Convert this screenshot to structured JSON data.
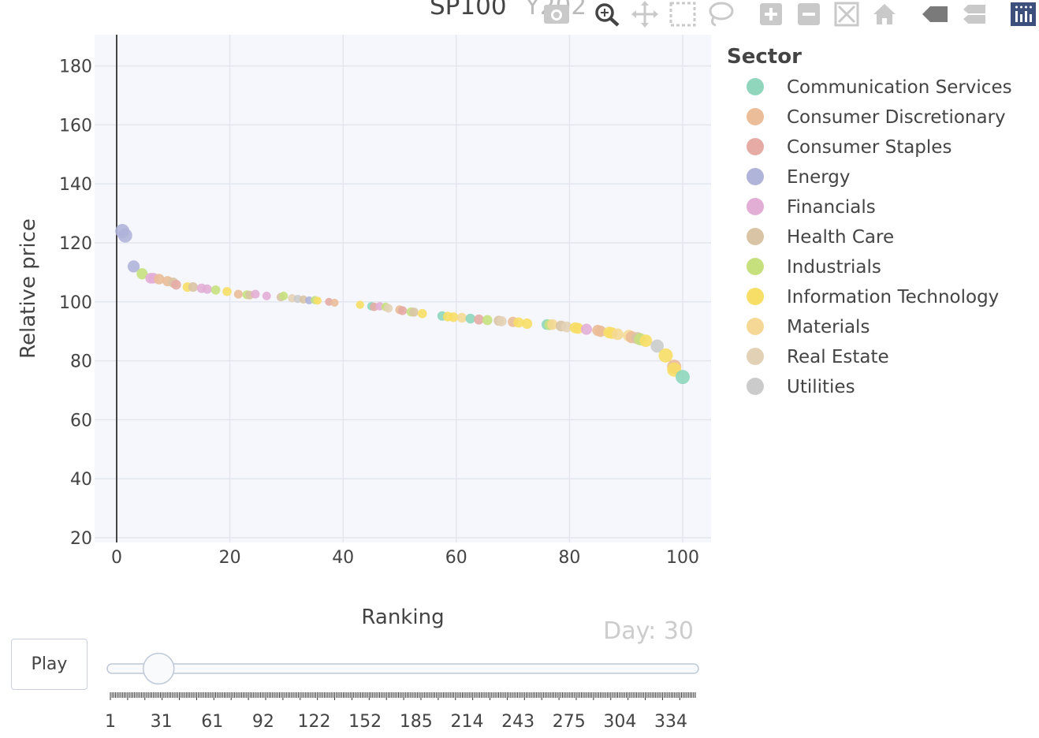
{
  "title": {
    "main": "SP100",
    "faded": "Y202"
  },
  "day_label": "Day: 30",
  "play_label": "Play",
  "legend": {
    "title": "Sector",
    "items": [
      {
        "label": "Communication Services",
        "color": "#8fd6bd"
      },
      {
        "label": "Consumer Discretionary",
        "color": "#ebbd98"
      },
      {
        "label": "Consumer Staples",
        "color": "#e6aba5"
      },
      {
        "label": "Energy",
        "color": "#b0b4d9"
      },
      {
        "label": "Financials",
        "color": "#e2aed6"
      },
      {
        "label": "Health Care",
        "color": "#d9c4a5"
      },
      {
        "label": "Industrials",
        "color": "#c7e07e"
      },
      {
        "label": "Information Technology",
        "color": "#f7de66"
      },
      {
        "label": "Materials",
        "color": "#f5d895"
      },
      {
        "label": "Real Estate",
        "color": "#e3d1b6"
      },
      {
        "label": "Utilities",
        "color": "#cbcbcb"
      }
    ]
  },
  "slider": {
    "ticks": [
      "1",
      "31",
      "61",
      "92",
      "122",
      "152",
      "185",
      "214",
      "243",
      "275",
      "304",
      "334"
    ],
    "current_fraction": 0.087
  },
  "modebar_icons": [
    "camera-icon",
    "zoom-icon",
    "pan-icon",
    "box-select-icon",
    "lasso-icon",
    "zoom-in-icon",
    "zoom-out-icon",
    "autoscale-icon",
    "reset-axes-icon",
    "spike-lines-icon",
    "compare-hover-icon",
    "plotly-logo-icon"
  ],
  "chart_data": {
    "type": "scatter",
    "title": "SP100 Y202",
    "xlabel": "Ranking",
    "ylabel": "Relative price",
    "xlim": [
      -4,
      105
    ],
    "ylim": [
      18,
      190
    ],
    "xticks": [
      0,
      20,
      40,
      60,
      80,
      100
    ],
    "yticks": [
      20,
      40,
      60,
      80,
      100,
      120,
      140,
      160,
      180
    ],
    "grid": true,
    "legend_position": "right",
    "points": [
      {
        "x": 1,
        "y": 124,
        "s": "Energy"
      },
      {
        "x": 1.5,
        "y": 122.5,
        "s": "Energy"
      },
      {
        "x": 3,
        "y": 112,
        "s": "Energy"
      },
      {
        "x": 4.5,
        "y": 109.5,
        "s": "Industrials"
      },
      {
        "x": 6,
        "y": 108,
        "s": "Financials"
      },
      {
        "x": 6.5,
        "y": 108,
        "s": "Financials"
      },
      {
        "x": 7.5,
        "y": 107.7,
        "s": "Consumer Discretionary"
      },
      {
        "x": 9,
        "y": 107,
        "s": "Consumer Discretionary"
      },
      {
        "x": 10,
        "y": 106.5,
        "s": "Health Care"
      },
      {
        "x": 10.5,
        "y": 105.8,
        "s": "Consumer Staples"
      },
      {
        "x": 12.5,
        "y": 105,
        "s": "Information Technology"
      },
      {
        "x": 13.5,
        "y": 105,
        "s": "Health Care"
      },
      {
        "x": 15,
        "y": 104.6,
        "s": "Financials"
      },
      {
        "x": 16,
        "y": 104.3,
        "s": "Financials"
      },
      {
        "x": 17.5,
        "y": 104,
        "s": "Industrials"
      },
      {
        "x": 19.5,
        "y": 103.5,
        "s": "Information Technology"
      },
      {
        "x": 21.5,
        "y": 102.6,
        "s": "Consumer Discretionary"
      },
      {
        "x": 23,
        "y": 102.4,
        "s": "Industrials"
      },
      {
        "x": 23.5,
        "y": 102.3,
        "s": "Health Care"
      },
      {
        "x": 24.5,
        "y": 102.6,
        "s": "Financials"
      },
      {
        "x": 26.5,
        "y": 102,
        "s": "Financials"
      },
      {
        "x": 29,
        "y": 101.6,
        "s": "Health Care"
      },
      {
        "x": 29.5,
        "y": 102,
        "s": "Industrials"
      },
      {
        "x": 31,
        "y": 101.2,
        "s": "Real Estate"
      },
      {
        "x": 32,
        "y": 101,
        "s": "Utilities"
      },
      {
        "x": 33,
        "y": 100.8,
        "s": "Health Care"
      },
      {
        "x": 34,
        "y": 100.5,
        "s": "Energy"
      },
      {
        "x": 35,
        "y": 100.6,
        "s": "Industrials"
      },
      {
        "x": 35.5,
        "y": 100.4,
        "s": "Information Technology"
      },
      {
        "x": 37.5,
        "y": 100,
        "s": "Consumer Staples"
      },
      {
        "x": 38.5,
        "y": 99.7,
        "s": "Consumer Discretionary"
      },
      {
        "x": 43,
        "y": 99,
        "s": "Information Technology"
      },
      {
        "x": 45,
        "y": 98.5,
        "s": "Communication Services"
      },
      {
        "x": 45.5,
        "y": 98.3,
        "s": "Consumer Staples"
      },
      {
        "x": 46.5,
        "y": 98.5,
        "s": "Financials"
      },
      {
        "x": 47.5,
        "y": 98.3,
        "s": "Industrials"
      },
      {
        "x": 48,
        "y": 97.8,
        "s": "Real Estate"
      },
      {
        "x": 50,
        "y": 97.3,
        "s": "Consumer Discretionary"
      },
      {
        "x": 50.5,
        "y": 97,
        "s": "Consumer Staples"
      },
      {
        "x": 52,
        "y": 96.6,
        "s": "Industrials"
      },
      {
        "x": 52.5,
        "y": 96.5,
        "s": "Health Care"
      },
      {
        "x": 54,
        "y": 96,
        "s": "Information Technology"
      },
      {
        "x": 57.5,
        "y": 95.2,
        "s": "Communication Services"
      },
      {
        "x": 58.5,
        "y": 95,
        "s": "Information Technology"
      },
      {
        "x": 59.5,
        "y": 94.8,
        "s": "Information Technology"
      },
      {
        "x": 61,
        "y": 94.6,
        "s": "Materials"
      },
      {
        "x": 62.5,
        "y": 94.3,
        "s": "Communication Services"
      },
      {
        "x": 64,
        "y": 94,
        "s": "Consumer Staples"
      },
      {
        "x": 65.5,
        "y": 93.8,
        "s": "Industrials"
      },
      {
        "x": 67.5,
        "y": 93.6,
        "s": "Health Care"
      },
      {
        "x": 68,
        "y": 93.4,
        "s": "Real Estate"
      },
      {
        "x": 70,
        "y": 93.2,
        "s": "Consumer Discretionary"
      },
      {
        "x": 71,
        "y": 93,
        "s": "Information Technology"
      },
      {
        "x": 72.5,
        "y": 92.6,
        "s": "Information Technology"
      },
      {
        "x": 76,
        "y": 92.3,
        "s": "Communication Services"
      },
      {
        "x": 76.5,
        "y": 92.2,
        "s": "Industrials"
      },
      {
        "x": 77,
        "y": 92.3,
        "s": "Materials"
      },
      {
        "x": 78.5,
        "y": 91.8,
        "s": "Health Care"
      },
      {
        "x": 79.5,
        "y": 91.5,
        "s": "Real Estate"
      },
      {
        "x": 81,
        "y": 91.2,
        "s": "Information Technology"
      },
      {
        "x": 81.5,
        "y": 91,
        "s": "Information Technology"
      },
      {
        "x": 83,
        "y": 90.7,
        "s": "Financials"
      },
      {
        "x": 85,
        "y": 90.3,
        "s": "Consumer Discretionary"
      },
      {
        "x": 85.5,
        "y": 90,
        "s": "Consumer Discretionary"
      },
      {
        "x": 87,
        "y": 89.6,
        "s": "Information Technology"
      },
      {
        "x": 87.5,
        "y": 89.4,
        "s": "Information Technology"
      },
      {
        "x": 88.5,
        "y": 89,
        "s": "Materials"
      },
      {
        "x": 90.5,
        "y": 88.5,
        "s": "Materials"
      },
      {
        "x": 91,
        "y": 88,
        "s": "Consumer Discretionary"
      },
      {
        "x": 92,
        "y": 87.7,
        "s": "Health Care"
      },
      {
        "x": 92.5,
        "y": 87.3,
        "s": "Industrials"
      },
      {
        "x": 93.5,
        "y": 86.8,
        "s": "Information Technology"
      },
      {
        "x": 95.5,
        "y": 85,
        "s": "Utilities"
      },
      {
        "x": 97,
        "y": 81.8,
        "s": "Information Technology"
      },
      {
        "x": 98.5,
        "y": 78,
        "s": "Consumer Discretionary"
      },
      {
        "x": 98.5,
        "y": 77,
        "s": "Information Technology"
      },
      {
        "x": 100,
        "y": 74.5,
        "s": "Communication Services"
      }
    ]
  }
}
